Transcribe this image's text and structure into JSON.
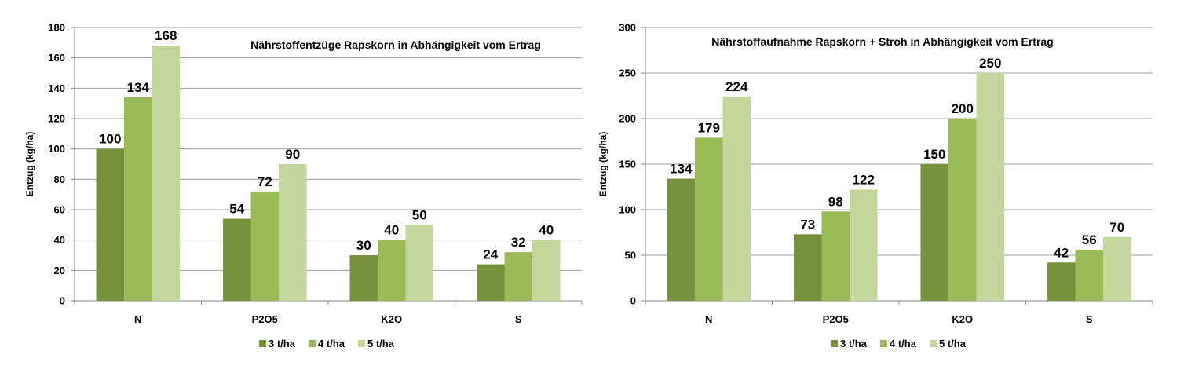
{
  "chart_data": [
    {
      "type": "bar",
      "title": "Nährstoffentzüge Rapskorn in Abhängigkeit vom Ertrag",
      "ylabel": "Entzug (kg/ha)",
      "xlabel": "",
      "categories": [
        "N",
        "P2O5",
        "K2O",
        "S"
      ],
      "ylim": [
        0,
        180
      ],
      "yticks": [
        0,
        20,
        40,
        60,
        80,
        100,
        120,
        140,
        160,
        180
      ],
      "grid": true,
      "legend_position": "bottom",
      "series": [
        {
          "name": "3 t/ha",
          "values": [
            100,
            54,
            30,
            24
          ],
          "color": "#76923C"
        },
        {
          "name": "4 t/ha",
          "values": [
            134,
            72,
            40,
            32
          ],
          "color": "#9BBB59"
        },
        {
          "name": "5 t/ha",
          "values": [
            168,
            90,
            50,
            40
          ],
          "color": "#C3D69B"
        }
      ]
    },
    {
      "type": "bar",
      "title": "Nährstoffaufnahme Rapskorn + Stroh in Abhängigkeit vom Ertrag",
      "ylabel": "Entzug (kg/ha)",
      "xlabel": "",
      "categories": [
        "N",
        "P2O5",
        "K2O",
        "S"
      ],
      "ylim": [
        0,
        300
      ],
      "yticks": [
        0,
        50,
        100,
        150,
        200,
        250,
        300
      ],
      "grid": true,
      "legend_position": "bottom",
      "series": [
        {
          "name": "3 t/ha",
          "values": [
            134,
            73,
            150,
            42
          ],
          "color": "#76923C"
        },
        {
          "name": "4 t/ha",
          "values": [
            179,
            98,
            200,
            56
          ],
          "color": "#9BBB59"
        },
        {
          "name": "5 t/ha",
          "values": [
            224,
            122,
            250,
            70
          ],
          "color": "#C3D69B"
        }
      ]
    }
  ]
}
